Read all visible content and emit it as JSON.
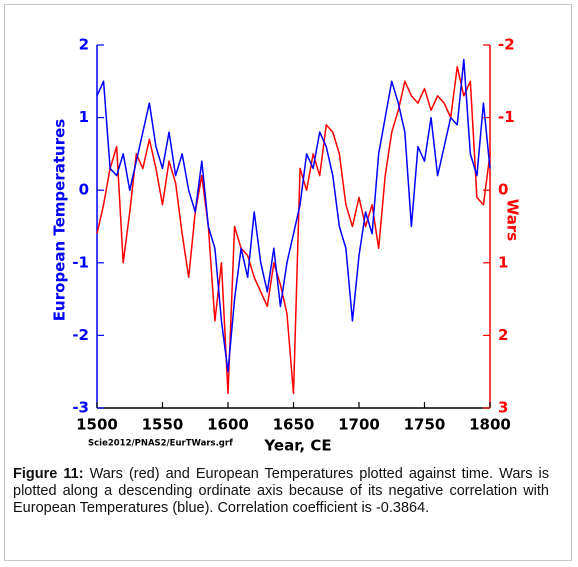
{
  "chart_data": {
    "type": "line",
    "y_label": "European Temperatures",
    "y2_label": "Wars",
    "x_label": "Year, CE",
    "note": "Scie2012/PNAS2/EurTWars.grf",
    "caption": {
      "label": "Figure 11:",
      "text": "Wars (red) and European Temperatures plotted against time. Wars is plotted along a descending ordinate axis because of its negative correlation with European Temperatures (blue). Correlation coefficient is -0.3864."
    },
    "x": [
      1500,
      1505,
      1510,
      1515,
      1520,
      1525,
      1530,
      1535,
      1540,
      1545,
      1550,
      1555,
      1560,
      1565,
      1570,
      1575,
      1580,
      1585,
      1590,
      1595,
      1600,
      1605,
      1610,
      1615,
      1620,
      1625,
      1630,
      1635,
      1640,
      1645,
      1650,
      1655,
      1660,
      1665,
      1670,
      1675,
      1680,
      1685,
      1690,
      1695,
      1700,
      1705,
      1710,
      1715,
      1720,
      1725,
      1730,
      1735,
      1740,
      1745,
      1750,
      1755,
      1760,
      1765,
      1770,
      1775,
      1780,
      1785,
      1790,
      1795,
      1800
    ],
    "series": [
      {
        "name": "European Temperatures",
        "color": "#0000ff",
        "axis": "y",
        "values": [
          1.3,
          1.5,
          0.3,
          0.2,
          0.5,
          0.0,
          0.4,
          0.8,
          1.2,
          0.6,
          0.3,
          0.8,
          0.2,
          0.5,
          0.0,
          -0.3,
          0.4,
          -0.5,
          -0.8,
          -1.8,
          -2.5,
          -1.5,
          -0.8,
          -1.2,
          -0.3,
          -1.0,
          -1.4,
          -0.8,
          -1.6,
          -1.0,
          -0.6,
          -0.2,
          0.5,
          0.3,
          0.8,
          0.6,
          0.2,
          -0.5,
          -0.8,
          -1.8,
          -0.9,
          -0.3,
          -0.6,
          0.5,
          1.0,
          1.5,
          1.2,
          0.8,
          -0.5,
          0.6,
          0.4,
          1.0,
          0.2,
          0.6,
          1.0,
          0.9,
          1.8,
          0.5,
          0.2,
          1.2,
          0.3
        ]
      },
      {
        "name": "Wars",
        "color": "#ff0000",
        "axis": "y2",
        "values": [
          0.6,
          0.2,
          -0.3,
          -0.6,
          1.0,
          0.3,
          -0.5,
          -0.3,
          -0.7,
          -0.3,
          0.2,
          -0.4,
          -0.1,
          0.6,
          1.2,
          0.3,
          -0.2,
          0.5,
          1.8,
          1.0,
          2.8,
          0.5,
          0.8,
          0.9,
          1.2,
          1.4,
          1.6,
          1.0,
          1.3,
          1.7,
          2.8,
          -0.3,
          0.0,
          -0.5,
          -0.2,
          -0.9,
          -0.8,
          -0.5,
          0.2,
          0.5,
          0.1,
          0.5,
          0.2,
          0.8,
          -0.2,
          -0.8,
          -1.1,
          -1.5,
          -1.3,
          -1.2,
          -1.4,
          -1.1,
          -1.3,
          -1.2,
          -1.0,
          -1.7,
          -1.3,
          -1.5,
          0.1,
          0.2,
          -0.5
        ]
      }
    ],
    "xlim": [
      1500,
      1800
    ],
    "xticks": [
      1500,
      1550,
      1600,
      1650,
      1700,
      1750,
      1800
    ],
    "ylim": [
      -3,
      2
    ],
    "yticks": [
      -3,
      -2,
      -1,
      0,
      1,
      2
    ],
    "y2lim": [
      3,
      -2
    ],
    "y2ticks": [
      3,
      2,
      1,
      0,
      -1,
      -2
    ],
    "grid": false
  }
}
